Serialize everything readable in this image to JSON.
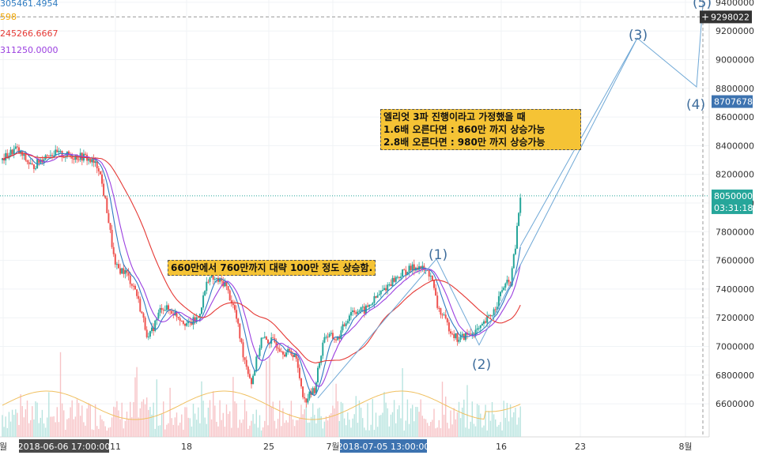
{
  "legend": [
    {
      "text": "305461.4954",
      "color": "#2e7bc1"
    },
    {
      "text": "598",
      "color": "#f0a500"
    },
    {
      "text": "245266.6667",
      "color": "#e53935"
    },
    {
      "text": "311250.0000",
      "color": "#9b3fe0"
    }
  ],
  "annotations": {
    "elliott_box": [
      "엘리엇 3파 진행이라고 가정했을 때",
      "1.6배 오른다면 : 860만 까지 상승가능",
      "2.8배 오른다면 : 980만 까지 상승가능"
    ],
    "rise_box": "660만에서 760만까지 대략 100만 정도 상승함."
  },
  "wave_labels": [
    {
      "text": "(1)"
    },
    {
      "text": "(2)"
    },
    {
      "text": "(3)"
    },
    {
      "text": "(4)"
    },
    {
      "text": "(5)"
    }
  ],
  "chart_data": {
    "type": "line",
    "y_axis": {
      "ticks": [
        "9400000",
        "9200000",
        "9000000",
        "8800000",
        "8600000",
        "8400000",
        "8200000",
        "8000000",
        "7800000",
        "7600000",
        "7400000",
        "7200000",
        "7000000",
        "6800000",
        "6600000"
      ],
      "range": [
        6470000,
        9480000
      ],
      "position": "right",
      "badges": [
        {
          "text": "9298022",
          "value": 9298022,
          "style": "crosshair",
          "color": "#333333"
        },
        {
          "text": "8707678",
          "value": 8707678,
          "style": "projection",
          "color": "#3d73b0"
        },
        {
          "text": "8050000",
          "value": 8050000,
          "style": "last-price",
          "color": "#26a69a"
        },
        {
          "text": "03:31:18",
          "value": 7970000,
          "style": "countdown",
          "color": "#26a69a"
        }
      ]
    },
    "x_axis": {
      "ticks": [
        "월",
        "11",
        "18",
        "25",
        "7월",
        "16",
        "23",
        "8월"
      ],
      "highlights": [
        "2018-06-06 17:00:00",
        "2018-07-05 13:00:00"
      ]
    },
    "price_anchors": [
      {
        "i": 0,
        "v": 8300000
      },
      {
        "i": 8,
        "v": 8380000
      },
      {
        "i": 18,
        "v": 8250000
      },
      {
        "i": 28,
        "v": 8350000
      },
      {
        "i": 40,
        "v": 8330000
      },
      {
        "i": 50,
        "v": 8320000
      },
      {
        "i": 58,
        "v": 8250000
      },
      {
        "i": 63,
        "v": 7950000
      },
      {
        "i": 68,
        "v": 7550000
      },
      {
        "i": 74,
        "v": 7520000
      },
      {
        "i": 80,
        "v": 7400000
      },
      {
        "i": 88,
        "v": 7050000
      },
      {
        "i": 96,
        "v": 7280000
      },
      {
        "i": 104,
        "v": 7230000
      },
      {
        "i": 112,
        "v": 7150000
      },
      {
        "i": 118,
        "v": 7200000
      },
      {
        "i": 124,
        "v": 7480000
      },
      {
        "i": 134,
        "v": 7440000
      },
      {
        "i": 140,
        "v": 7250000
      },
      {
        "i": 145,
        "v": 6950000
      },
      {
        "i": 150,
        "v": 6750000
      },
      {
        "i": 156,
        "v": 7050000
      },
      {
        "i": 164,
        "v": 7030000
      },
      {
        "i": 170,
        "v": 6960000
      },
      {
        "i": 176,
        "v": 6950000
      },
      {
        "i": 182,
        "v": 6620000
      },
      {
        "i": 188,
        "v": 6700000
      },
      {
        "i": 194,
        "v": 7080000
      },
      {
        "i": 202,
        "v": 7050000
      },
      {
        "i": 210,
        "v": 7250000
      },
      {
        "i": 218,
        "v": 7250000
      },
      {
        "i": 226,
        "v": 7350000
      },
      {
        "i": 234,
        "v": 7450000
      },
      {
        "i": 242,
        "v": 7520000
      },
      {
        "i": 250,
        "v": 7560000
      },
      {
        "i": 258,
        "v": 7500000
      },
      {
        "i": 262,
        "v": 7280000
      },
      {
        "i": 268,
        "v": 7150000
      },
      {
        "i": 274,
        "v": 7050000
      },
      {
        "i": 280,
        "v": 7080000
      },
      {
        "i": 288,
        "v": 7120000
      },
      {
        "i": 296,
        "v": 7250000
      },
      {
        "i": 302,
        "v": 7420000
      },
      {
        "i": 306,
        "v": 7450000
      },
      {
        "i": 309,
        "v": 7700000
      },
      {
        "i": 312,
        "v": 8050000
      }
    ],
    "elliott_projection": [
      {
        "label": "(1)",
        "value": 7610000
      },
      {
        "label": "(2)",
        "value": 7010000
      },
      {
        "label": "(3)",
        "value": 9150000
      },
      {
        "label": "(4)",
        "value": 8810000
      },
      {
        "label": "(5)",
        "value": 9390000
      }
    ],
    "series_colors": {
      "up": "#26a69a",
      "down": "#ef5350",
      "ma_fast": "#2e7bc1",
      "ma_mid": "#9b3fe0",
      "ma_slow": "#e53935",
      "volume_ma": "#f0c060",
      "projection": "#6fa8d6"
    }
  }
}
